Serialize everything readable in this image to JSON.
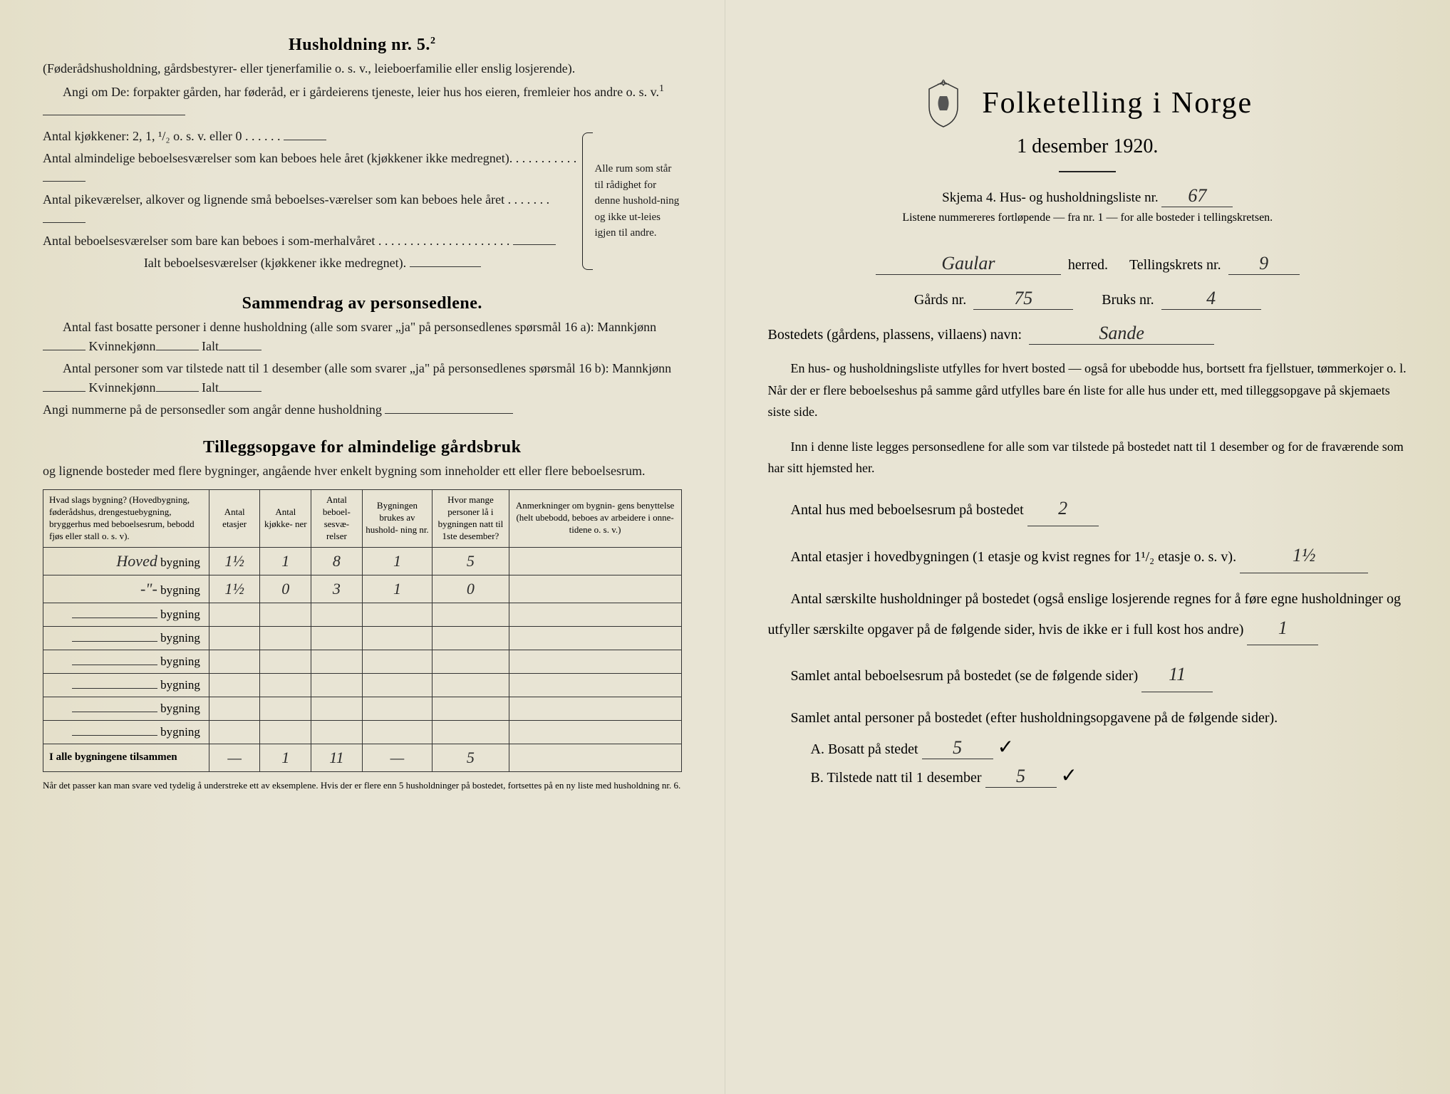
{
  "left": {
    "husholdning_title": "Husholdning nr. 5.",
    "husholdning_sup": "2",
    "husholdning_desc": "(Føderådshusholdning, gårdsbestyrer- eller tjenerfamilie o. s. v., leieboerfamilie eller enslig losjerende).",
    "angi_line": "Angi om De:  forpakter gården, har føderåd, er i gårdeierens tjeneste, leier hus hos eieren, fremleier hos andre o. s. v.",
    "angi_sup": "1",
    "kjokken_line": "Antal kjøkkener: 2, 1, ¹/₂ o. s. v. eller 0",
    "alm_bebo_line": "Antal almindelige beboelsesværelser som kan beboes hele året (kjøkkener ikke medregnet).",
    "pike_line": "Antal pikeværelser, alkover og lignende små beboelses-værelser som kan beboes hele året",
    "sommer_line": "Antal beboelsesværelser som bare kan beboes i som-merhalvåret",
    "ialt_line": "Ialt beboelsesværelser (kjøkkener ikke medregnet).",
    "brace_text": "Alle rum som står til rådighet for denne hushold-ning og ikke ut-leies igjen til andre.",
    "sammendrag_title": "Sammendrag av personsedlene.",
    "fast_bosatte": "Antal fast bosatte personer i denne husholdning (alle som svarer „ja\" på personsedlenes spørsmål 16 a): Mannkjønn",
    "kvinnekjonn": "Kvinnekjønn",
    "ialt": "Ialt",
    "tilstede": "Antal personer som var tilstede natt til 1 desember (alle som svarer „ja\" på personsedlenes spørsmål 16 b): Mannkjønn",
    "angi_num": "Angi nummerne på de personsedler som angår denne husholdning",
    "tillegg_title": "Tilleggsopgave for almindelige gårdsbruk",
    "tillegg_desc": "og lignende bosteder med flere bygninger, angående hver enkelt bygning som inneholder ett eller flere beboelsesrum.",
    "table": {
      "headers": [
        "Hvad slags bygning?\n(Hovedbygning, føderådshus, drengestuebygning, bryggerhus med beboelsesrum, bebodd fjøs eller stall o. s. v).",
        "Antal\netasjer",
        "Antal\nkjøkke-\nner",
        "Antal\nbeboel-\nsesvæ-\nrelser",
        "Bygningen\nbrukes av\nhushold-\nning nr.",
        "Hvor mange\npersoner lå\ni bygningen\nnatt til 1ste\ndesember?",
        "Anmerkninger om bygnin-\ngens benyttelse (helt ubebodd,\nbeboes av arbeidere i onne-\ntidene o. s. v.)"
      ],
      "rows": [
        {
          "name": "Hoved",
          "etasjer": "1½",
          "kjokken": "1",
          "bebo": "8",
          "hush": "1",
          "pers": "5",
          "anm": ""
        },
        {
          "name": "-\"-",
          "etasjer": "1½",
          "kjokken": "0",
          "bebo": "3",
          "hush": "1",
          "pers": "0",
          "anm": ""
        }
      ],
      "blank_rows": 6,
      "total_label": "I alle bygningene tilsammen",
      "totals": {
        "etasjer": "—",
        "kjokken": "1",
        "bebo": "11",
        "hush": "—",
        "pers": "5",
        "anm": ""
      },
      "bygning_label": "bygning"
    },
    "footnote": "Når det passer kan man svare ved tydelig å understreke ett av eksemplene.\nHvis der er flere enn 5 husholdninger på bostedet, fortsettes på en ny liste med husholdning nr. 6."
  },
  "right": {
    "main_title": "Folketelling i Norge",
    "date": "1 desember 1920.",
    "skjema": "Skjema 4.  Hus- og husholdningsliste nr.",
    "skjema_nr": "67",
    "listene": "Listene nummereres fortløpende — fra nr. 1 — for alle bosteder i tellingskretsen.",
    "herred_name": "Gaular",
    "herred_label": "herred.",
    "tellingskrets_label": "Tellingskrets nr.",
    "tellingskrets_nr": "9",
    "gards_label": "Gårds nr.",
    "gards_nr": "75",
    "bruks_label": "Bruks nr.",
    "bruks_nr": "4",
    "bosted_label": "Bostedets (gårdens, plassens, villaens) navn:",
    "bosted_name": "Sande",
    "para1": "En hus- og husholdningsliste utfylles for hvert bosted — også for ubebodde hus, bortsett fra fjellstuer, tømmerkojer o. l.  Når der er flere beboelseshus på samme gård utfylles bare én liste for alle hus under ett, med tilleggsopgave på skjemaets siste side.",
    "para2": "Inn i denne liste legges personsedlene for alle som var tilstede på bostedet natt til 1 desember og for de fraværende som har sitt hjemsted her.",
    "antal_hus_label": "Antal hus med beboelsesrum på bostedet",
    "antal_hus": "2",
    "etasjer_label": "Antal etasjer i hovedbygningen (1 etasje og kvist regnes for 1¹/₂ etasje o. s. v).",
    "etasjer": "1½",
    "saerskilte_label": "Antal særskilte husholdninger på bostedet (også enslige losjerende regnes for å føre egne husholdninger og utfyller særskilte opgaver på de følgende sider, hvis de ikke er i full kost hos andre)",
    "saerskilte": "1",
    "samlet_bebo_label": "Samlet antal beboelsesrum på bostedet (se de følgende sider)",
    "samlet_bebo": "11",
    "samlet_pers_label": "Samlet antal personer på bostedet (efter husholdningsopgavene på de følgende sider).",
    "a_label": "A.  Bosatt på stedet",
    "a_val": "5",
    "b_label": "B.  Tilstede natt til 1 desember",
    "b_val": "5"
  },
  "colors": {
    "paper": "#e8e4d4",
    "text": "#1a1a1a",
    "line": "#333333"
  }
}
